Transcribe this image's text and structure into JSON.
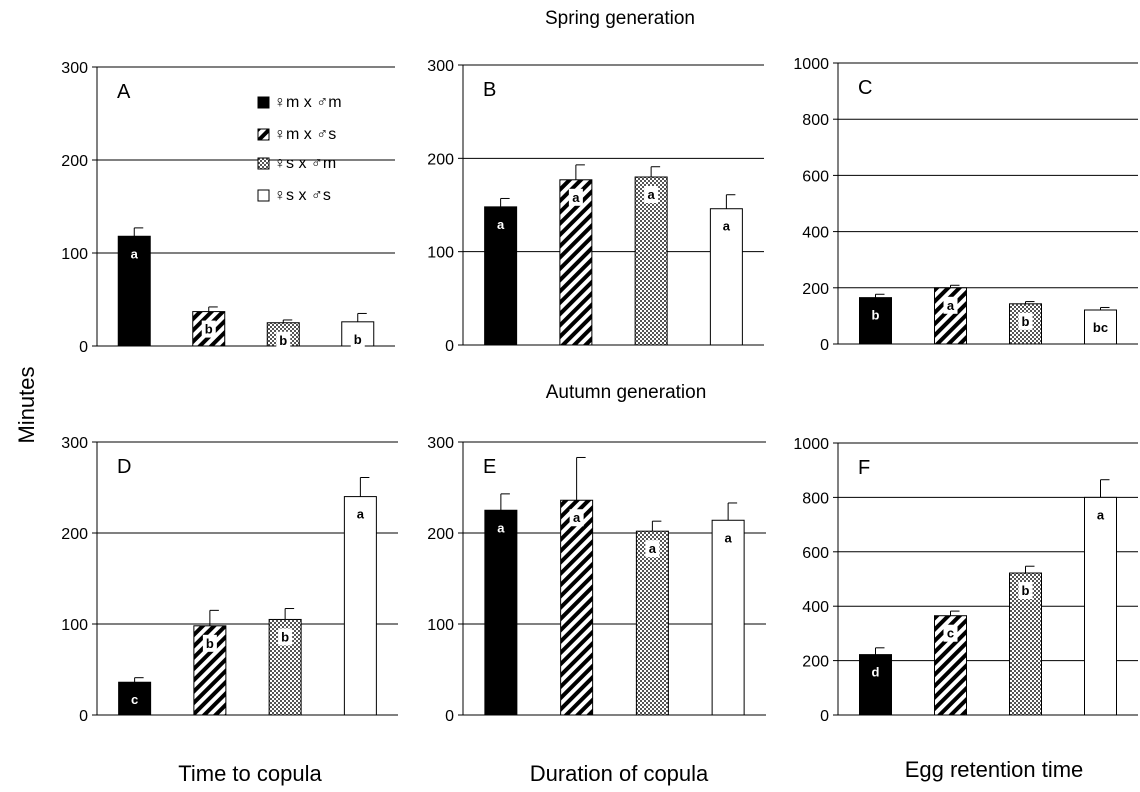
{
  "figure": {
    "row_titles": [
      "Spring generation",
      "Autumn generation"
    ],
    "ylabel": "Minutes",
    "column_labels": [
      "Time to copula",
      "Duration of copula",
      "Egg retention time"
    ]
  },
  "legend": {
    "placement": "panel-A-top-right",
    "entries": [
      {
        "label": "♀m x ♂m",
        "fill": "solid"
      },
      {
        "label": "♀m x ♂s",
        "fill": "hatch"
      },
      {
        "label": "♀s x ♂m",
        "fill": "crosshatch"
      },
      {
        "label": "♀s x ♂s",
        "fill": "white"
      }
    ]
  },
  "colors": {
    "solid": "#000000",
    "white": "#ffffff",
    "grid": "#000000"
  },
  "chart_data": [
    {
      "type": "bar",
      "panel": "A",
      "ylim": [
        0,
        300
      ],
      "yticks": [
        0,
        100,
        200,
        300
      ],
      "grid": true,
      "series": [
        {
          "values": [
            118,
            37,
            25,
            26
          ],
          "errors": [
            9,
            5,
            3,
            9
          ],
          "letters": [
            "a",
            "b",
            "b",
            "b"
          ]
        }
      ]
    },
    {
      "type": "bar",
      "panel": "B",
      "ylim": [
        0,
        300
      ],
      "yticks": [
        0,
        100,
        200,
        300
      ],
      "grid": true,
      "series": [
        {
          "values": [
            148,
            177,
            180,
            146
          ],
          "errors": [
            9,
            16,
            11,
            15
          ],
          "letters": [
            "a",
            "a",
            "a",
            "a"
          ]
        }
      ]
    },
    {
      "type": "bar",
      "panel": "C",
      "ylim": [
        0,
        1000
      ],
      "yticks": [
        0,
        200,
        400,
        600,
        800,
        1000
      ],
      "grid": true,
      "series": [
        {
          "values": [
            165,
            200,
            143,
            121
          ],
          "errors": [
            12,
            9,
            8,
            9
          ],
          "letters": [
            "b",
            "a",
            "b",
            "bc"
          ]
        }
      ]
    },
    {
      "type": "bar",
      "panel": "D",
      "ylim": [
        0,
        300
      ],
      "yticks": [
        0,
        100,
        200,
        300
      ],
      "grid": true,
      "series": [
        {
          "values": [
            36,
            98,
            105,
            240
          ],
          "errors": [
            5,
            17,
            12,
            21
          ],
          "letters": [
            "c",
            "b",
            "b",
            "a"
          ]
        }
      ]
    },
    {
      "type": "bar",
      "panel": "E",
      "ylim": [
        0,
        300
      ],
      "yticks": [
        0,
        100,
        200,
        300
      ],
      "grid": true,
      "series": [
        {
          "values": [
            225,
            236,
            202,
            214
          ],
          "errors": [
            18,
            47,
            11,
            19
          ],
          "letters": [
            "a",
            "a",
            "a",
            "a"
          ]
        }
      ]
    },
    {
      "type": "bar",
      "panel": "F",
      "ylim": [
        0,
        1000
      ],
      "yticks": [
        0,
        200,
        400,
        600,
        800,
        1000
      ],
      "grid": true,
      "series": [
        {
          "values": [
            222,
            365,
            522,
            800
          ],
          "errors": [
            25,
            17,
            25,
            65
          ],
          "letters": [
            "d",
            "c",
            "b",
            "a"
          ]
        }
      ]
    }
  ]
}
